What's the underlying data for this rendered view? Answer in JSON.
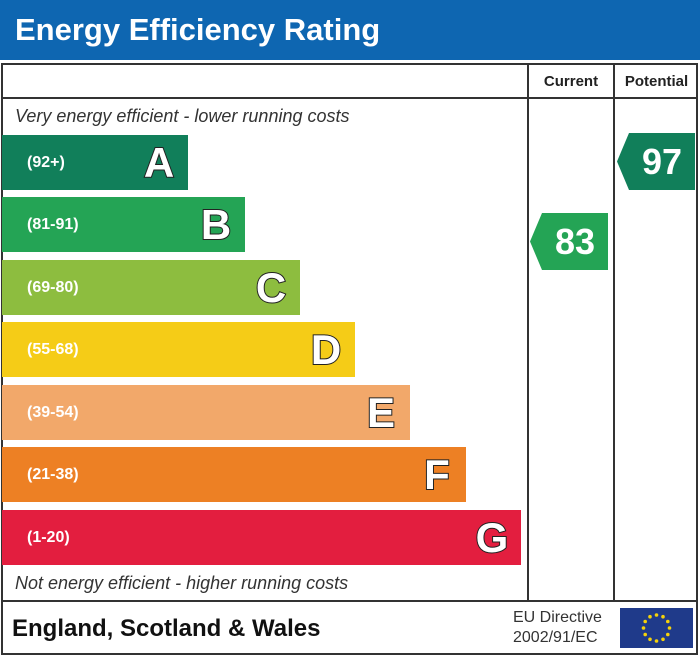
{
  "chart_data": {
    "type": "bar",
    "title": "Energy Efficiency Rating",
    "columns": [
      "Current",
      "Potential"
    ],
    "top_note": "Very energy efficient - lower running costs",
    "bottom_note": "Not energy efficient - higher running costs",
    "bands": [
      {
        "letter": "A",
        "range": "(92+)",
        "color": "#117f5a"
      },
      {
        "letter": "B",
        "range": "(81-91)",
        "color": "#24a455"
      },
      {
        "letter": "C",
        "range": "(69-80)",
        "color": "#8dbd3f"
      },
      {
        "letter": "D",
        "range": "(55-68)",
        "color": "#f5cc17"
      },
      {
        "letter": "E",
        "range": "(39-54)",
        "color": "#f2a86a"
      },
      {
        "letter": "F",
        "range": "(21-38)",
        "color": "#ed8024"
      },
      {
        "letter": "G",
        "range": "(1-20)",
        "color": "#e31e3f"
      }
    ],
    "current": {
      "value": "83",
      "band": "B"
    },
    "potential": {
      "value": "97",
      "band": "A"
    }
  },
  "footer": {
    "region": "England, Scotland & Wales",
    "directive_line1": "EU Directive",
    "directive_line2": "2002/91/EC",
    "flag_icon": "eu-flag-icon"
  },
  "colors": {
    "header": "#0e66b1",
    "flag": "#1f3a8a",
    "stars": "#f5d20a"
  }
}
